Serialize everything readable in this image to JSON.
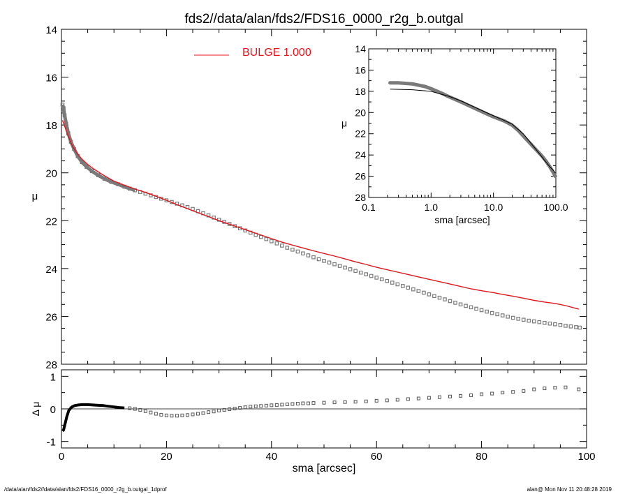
{
  "title": "fds2//data/alan/fds2/FDS16_0000_r2g_b.outgal",
  "footer": {
    "left": "/data/alan/fds2//data/alan/fds2/FDS16_0000_r2g_b.outgal_1dprof",
    "right": "alan@  Mon Nov 11 20:48:28 2019"
  },
  "colors": {
    "model": "#e8141b",
    "data": "#7a7a7a",
    "residual_dense": "#000000"
  },
  "chart_data": [
    {
      "id": "main",
      "type": "scatter",
      "title": "fds2//data/alan/fds2/FDS16_0000_r2g_b.outgal",
      "xlabel": "",
      "ylabel": "μ",
      "xlim": [
        0,
        100
      ],
      "ylim": [
        28,
        14
      ],
      "y_inverted": true,
      "x_ticks": [
        0,
        20,
        40,
        60,
        80,
        100
      ],
      "y_ticks": [
        14,
        16,
        18,
        20,
        22,
        24,
        26,
        28
      ],
      "legend": {
        "label": "BULGE  1.000",
        "placement": "top-center"
      },
      "series": [
        {
          "name": "BULGE  1.000",
          "style": "line",
          "x": [
            0.2,
            1,
            2,
            3,
            4,
            5,
            6,
            8,
            10,
            12,
            14,
            16,
            18,
            20,
            22,
            24,
            26,
            28,
            30,
            32,
            34,
            36,
            38,
            40,
            42,
            44,
            46,
            48,
            50,
            52,
            54,
            56,
            58,
            60,
            62,
            64,
            66,
            68,
            70,
            72,
            74,
            76,
            78,
            80,
            82,
            84,
            86,
            88,
            90,
            92,
            94,
            96,
            98.5
          ],
          "y": [
            17.8,
            18.3,
            18.85,
            19.2,
            19.45,
            19.65,
            19.82,
            20.1,
            20.35,
            20.52,
            20.68,
            20.82,
            20.98,
            21.15,
            21.33,
            21.5,
            21.67,
            21.83,
            22.0,
            22.15,
            22.3,
            22.45,
            22.6,
            22.75,
            22.9,
            23.02,
            23.14,
            23.26,
            23.37,
            23.48,
            23.6,
            23.72,
            23.83,
            23.95,
            24.05,
            24.15,
            24.25,
            24.35,
            24.45,
            24.55,
            24.65,
            24.75,
            24.85,
            24.93,
            25.0,
            25.08,
            25.16,
            25.24,
            25.33,
            25.4,
            25.46,
            25.55,
            25.7
          ]
        },
        {
          "name": "",
          "style": "squares",
          "x": [
            0.2,
            0.4,
            0.6,
            0.9,
            1.3,
            1.8,
            2.4,
            3.1,
            3.9,
            4.8,
            5.8,
            7.0,
            8.2,
            9.5,
            10.8,
            12.0,
            13.0,
            14.0,
            15.0,
            16.0,
            17.0,
            18.0,
            19.0,
            20.0,
            21.0,
            22.0,
            23.0,
            24.0,
            25.0,
            26.0,
            27.0,
            28.0,
            29.0,
            30.0,
            31.0,
            32.0,
            33.0,
            34.0,
            35.0,
            36.0,
            37.0,
            38.0,
            39.0,
            40.0,
            41.0,
            42.0,
            43.0,
            44.0,
            45.0,
            46.0,
            47.0,
            48.0,
            49.0,
            50.0,
            51.0,
            52.0,
            53.0,
            54.0,
            55.0,
            56.0,
            57.0,
            58.0,
            59.0,
            60.0,
            61.0,
            62.0,
            63.0,
            64.0,
            65.0,
            66.0,
            67.0,
            68.0,
            69.0,
            70.0,
            71.0,
            72.0,
            73.0,
            74.0,
            75.0,
            76.0,
            77.0,
            78.0,
            79.0,
            80.0,
            81.0,
            82.0,
            83.0,
            84.0,
            85.0,
            86.0,
            87.0,
            88.0,
            89.0,
            90.0,
            91.0,
            92.0,
            93.0,
            94.0,
            95.0,
            96.0,
            97.0,
            98.0,
            98.7
          ],
          "y": [
            17.15,
            17.3,
            17.6,
            17.95,
            18.35,
            18.7,
            19.0,
            19.3,
            19.55,
            19.75,
            19.93,
            20.1,
            20.25,
            20.38,
            20.48,
            20.58,
            20.66,
            20.73,
            20.8,
            20.87,
            20.94,
            21.01,
            21.08,
            21.15,
            21.22,
            21.29,
            21.36,
            21.43,
            21.51,
            21.6,
            21.69,
            21.78,
            21.87,
            21.96,
            22.05,
            22.14,
            22.23,
            22.32,
            22.41,
            22.5,
            22.59,
            22.68,
            22.77,
            22.86,
            22.95,
            23.04,
            23.13,
            23.21,
            23.29,
            23.37,
            23.45,
            23.53,
            23.61,
            23.68,
            23.75,
            23.82,
            23.89,
            23.96,
            24.03,
            24.1,
            24.17,
            24.24,
            24.31,
            24.38,
            24.45,
            24.52,
            24.59,
            24.66,
            24.73,
            24.8,
            24.87,
            24.94,
            25.01,
            25.08,
            25.15,
            25.22,
            25.29,
            25.36,
            25.43,
            25.5,
            25.56,
            25.62,
            25.68,
            25.74,
            25.8,
            25.86,
            25.91,
            25.96,
            26.01,
            26.06,
            26.1,
            26.14,
            26.18,
            26.21,
            26.24,
            26.27,
            26.3,
            26.33,
            26.36,
            26.39,
            26.42,
            26.45,
            26.47
          ]
        }
      ]
    },
    {
      "id": "inset",
      "type": "line",
      "xlabel": "sma [arcsec]",
      "ylabel": "μ",
      "x_scale": "log",
      "xlim": [
        0.1,
        100
      ],
      "ylim": [
        28,
        14
      ],
      "y_inverted": true,
      "x_tick_labels": [
        "0.1",
        "1.0",
        "10.0",
        "100.0"
      ],
      "y_ticks": [
        14,
        16,
        18,
        20,
        22,
        24,
        26,
        28
      ],
      "series": [
        {
          "name": "",
          "style": "thick-gray",
          "x": [
            0.22,
            0.3,
            0.5,
            0.8,
            1.0,
            1.5,
            2.0,
            3.0,
            5.0,
            8.0,
            10.0,
            15.0,
            20.0,
            25.0,
            30.0,
            40.0,
            50.0,
            60.0,
            70.0,
            80.0,
            90.0,
            98.0
          ],
          "y": [
            17.2,
            17.2,
            17.3,
            17.55,
            17.75,
            18.2,
            18.55,
            19.0,
            19.6,
            20.15,
            20.4,
            20.8,
            21.2,
            21.7,
            22.2,
            23.0,
            23.6,
            24.1,
            24.6,
            25.1,
            25.6,
            26.0
          ]
        },
        {
          "name": "",
          "style": "thin-black",
          "x": [
            0.22,
            0.5,
            1.0,
            2.0,
            3.0,
            5.0,
            8.0,
            10.0,
            15.0,
            20.0,
            30.0,
            40.0,
            50.0,
            60.0,
            70.0,
            80.0,
            90.0,
            98.0
          ],
          "y": [
            17.8,
            17.85,
            18.0,
            18.5,
            18.9,
            19.5,
            20.05,
            20.3,
            20.75,
            21.1,
            22.0,
            22.9,
            23.6,
            24.2,
            24.7,
            25.1,
            25.4,
            25.7
          ]
        }
      ]
    },
    {
      "id": "residual",
      "type": "scatter",
      "xlabel": "sma [arcsec]",
      "ylabel": "Δ μ",
      "xlim": [
        0,
        100
      ],
      "ylim": [
        -1.2,
        1.2
      ],
      "x_ticks": [
        0,
        20,
        40,
        60,
        80,
        100
      ],
      "y_ticks": [
        -1,
        0,
        1
      ],
      "zero_line": true,
      "series": [
        {
          "name": "",
          "style": "dense-black",
          "x": [
            0.2,
            0.4,
            0.7,
            1.0,
            1.4,
            1.9,
            2.5,
            3.2,
            4.0,
            5.0,
            6.0,
            7.0,
            8.0,
            9.0,
            10.0,
            11.0,
            12.0
          ],
          "y": [
            -0.68,
            -0.65,
            -0.45,
            -0.25,
            -0.05,
            0.05,
            0.1,
            0.12,
            0.13,
            0.13,
            0.12,
            0.11,
            0.1,
            0.08,
            0.06,
            0.04,
            0.03
          ]
        },
        {
          "name": "",
          "style": "squares",
          "x": [
            13,
            14,
            15,
            16,
            17,
            18,
            19,
            20,
            21,
            22,
            23,
            24,
            25,
            26,
            27,
            28,
            29,
            30,
            31,
            32,
            33,
            34,
            35,
            36,
            37,
            38,
            39,
            40,
            41,
            42,
            43,
            44,
            45,
            46,
            47,
            48,
            50,
            52,
            54,
            56,
            58,
            60,
            62,
            64,
            66,
            68,
            70,
            72,
            74,
            76,
            78,
            80,
            82,
            84,
            86,
            88,
            90,
            92,
            94,
            96,
            98.5
          ],
          "y": [
            0.02,
            0.0,
            -0.03,
            -0.07,
            -0.11,
            -0.15,
            -0.18,
            -0.2,
            -0.21,
            -0.21,
            -0.2,
            -0.19,
            -0.17,
            -0.15,
            -0.13,
            -0.1,
            -0.08,
            -0.05,
            -0.03,
            -0.01,
            0.01,
            0.03,
            0.05,
            0.07,
            0.08,
            0.09,
            0.1,
            0.11,
            0.12,
            0.13,
            0.14,
            0.15,
            0.16,
            0.17,
            0.17,
            0.18,
            0.19,
            0.2,
            0.21,
            0.22,
            0.23,
            0.25,
            0.26,
            0.28,
            0.3,
            0.32,
            0.34,
            0.36,
            0.38,
            0.4,
            0.42,
            0.45,
            0.47,
            0.5,
            0.52,
            0.55,
            0.6,
            0.63,
            0.65,
            0.66,
            0.6
          ]
        }
      ]
    }
  ]
}
